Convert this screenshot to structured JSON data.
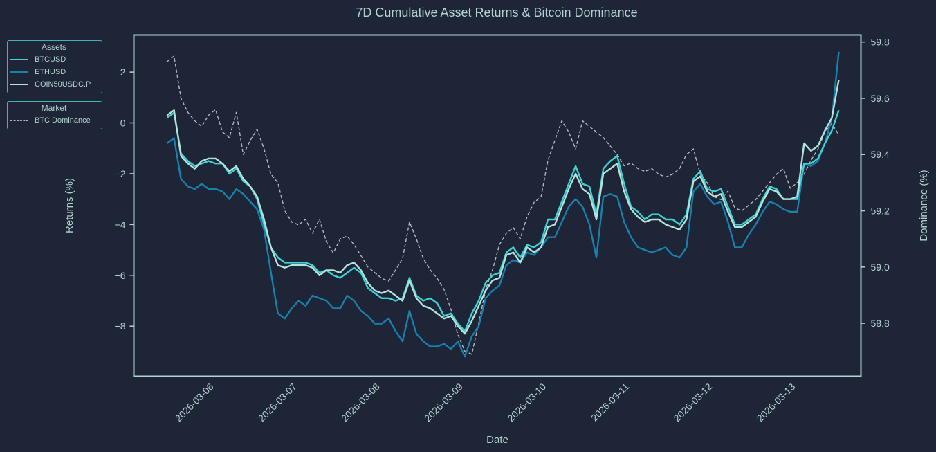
{
  "chart_data": {
    "type": "line",
    "title": "7D Cumulative Asset Returns & Bitcoin Dominance",
    "xlabel": "Date",
    "ylabel": "Returns (%)",
    "y2label": "Dominance (%)",
    "x_start": "2026-03-05T11:36",
    "x_step_hours": 2,
    "xlim": [
      "2026-03-05T02:00",
      "2026-03-13T20:00"
    ],
    "x_ticks": [
      "2026-03-06",
      "2026-03-07",
      "2026-03-08",
      "2026-03-09",
      "2026-03-10",
      "2026-03-11",
      "2026-03-12",
      "2026-03-13"
    ],
    "ylim": [
      -9.97,
      3.46
    ],
    "y_ticks": [
      2,
      0,
      -2,
      -4,
      -6,
      -8
    ],
    "y_tick_labels": [
      "2",
      "0",
      "−2",
      "−4",
      "−6",
      "−8"
    ],
    "y2lim": [
      58.612,
      59.825
    ],
    "y2_ticks": [
      59.8,
      59.6,
      59.4,
      59.2,
      59.0,
      58.8
    ],
    "y2_tick_labels": [
      "59.8",
      "59.6",
      "59.4",
      "59.2",
      "59.0",
      "58.8"
    ],
    "grid": false,
    "legends": [
      {
        "title": "Assets",
        "placement": "top-left (outside)",
        "entries": [
          "BTCUSD",
          "ETHUSD",
          "COIN50USDC.P"
        ]
      },
      {
        "title": "Market",
        "placement": "top-left (outside)",
        "entries": [
          "BTC Dominance"
        ]
      }
    ],
    "series": [
      {
        "name": "BTCUSD",
        "axis": "left",
        "color": "#3fd3d6",
        "style": "solid",
        "values": [
          0.2,
          0.4,
          -1.2,
          -1.5,
          -1.7,
          -1.6,
          -1.5,
          -1.6,
          -1.6,
          -2.0,
          -1.8,
          -2.3,
          -2.5,
          -3.0,
          -4.0,
          -4.9,
          -5.3,
          -5.5,
          -5.5,
          -5.5,
          -5.5,
          -5.6,
          -5.9,
          -5.8,
          -6.0,
          -6.1,
          -5.9,
          -5.7,
          -5.9,
          -6.5,
          -6.7,
          -6.9,
          -6.9,
          -7.0,
          -6.9,
          -6.1,
          -6.8,
          -7.0,
          -6.9,
          -7.1,
          -7.6,
          -7.5,
          -7.9,
          -8.2,
          -7.5,
          -7.0,
          -6.3,
          -6.0,
          -5.9,
          -5.1,
          -4.9,
          -5.3,
          -4.8,
          -4.9,
          -4.7,
          -3.8,
          -3.8,
          -3.1,
          -2.4,
          -1.7,
          -2.4,
          -2.5,
          -3.6,
          -1.8,
          -1.5,
          -1.3,
          -2.4,
          -3.3,
          -3.5,
          -3.8,
          -3.6,
          -3.6,
          -3.8,
          -3.8,
          -4.0,
          -3.6,
          -2.2,
          -1.9,
          -2.6,
          -2.7,
          -2.6,
          -3.3,
          -4.0,
          -4.0,
          -3.8,
          -3.6,
          -3.0,
          -2.5,
          -2.6,
          -3.0,
          -3.0,
          -3.0,
          -1.6,
          -1.6,
          -1.4,
          -0.8,
          -0.3,
          0.5
        ]
      },
      {
        "name": "ETHUSD",
        "axis": "left",
        "color": "#1a80ae",
        "style": "solid",
        "values": [
          -0.8,
          -0.6,
          -2.2,
          -2.5,
          -2.6,
          -2.4,
          -2.6,
          -2.6,
          -2.7,
          -3.0,
          -2.6,
          -2.8,
          -3.1,
          -3.4,
          -4.2,
          -5.9,
          -7.5,
          -7.7,
          -7.3,
          -7.0,
          -7.2,
          -6.8,
          -6.9,
          -7.0,
          -7.3,
          -7.3,
          -6.8,
          -7.0,
          -7.4,
          -7.6,
          -7.9,
          -7.9,
          -7.7,
          -8.2,
          -8.6,
          -7.4,
          -8.3,
          -8.6,
          -8.8,
          -8.8,
          -8.7,
          -8.9,
          -8.6,
          -9.2,
          -8.4,
          -8.0,
          -6.9,
          -6.6,
          -6.4,
          -5.6,
          -5.4,
          -5.5,
          -5.1,
          -5.2,
          -4.9,
          -4.5,
          -4.5,
          -3.9,
          -3.3,
          -3.0,
          -3.3,
          -4.0,
          -5.3,
          -2.9,
          -2.8,
          -2.9,
          -3.9,
          -4.5,
          -4.9,
          -5.0,
          -5.1,
          -5.0,
          -4.9,
          -5.2,
          -5.3,
          -4.9,
          -2.7,
          -2.4,
          -2.9,
          -3.2,
          -3.1,
          -3.9,
          -4.9,
          -4.9,
          -4.4,
          -4.0,
          -3.5,
          -3.1,
          -3.2,
          -3.4,
          -3.5,
          -3.5,
          -1.6,
          -1.7,
          -1.5,
          -0.8,
          0.2,
          2.8
        ]
      },
      {
        "name": "COIN50USDC.P",
        "axis": "left",
        "color": "#b5e2db",
        "style": "solid",
        "values": [
          0.3,
          0.5,
          -1.3,
          -1.6,
          -1.8,
          -1.5,
          -1.4,
          -1.4,
          -1.6,
          -1.9,
          -1.7,
          -2.2,
          -2.5,
          -2.9,
          -3.8,
          -4.9,
          -5.6,
          -5.7,
          -5.6,
          -5.6,
          -5.6,
          -5.7,
          -6.0,
          -5.8,
          -5.8,
          -5.9,
          -5.6,
          -5.5,
          -5.8,
          -6.3,
          -6.6,
          -6.7,
          -6.6,
          -6.8,
          -7.0,
          -6.2,
          -6.9,
          -7.2,
          -7.3,
          -7.5,
          -7.7,
          -7.6,
          -8.0,
          -8.3,
          -7.8,
          -7.2,
          -6.6,
          -6.2,
          -6.1,
          -5.2,
          -5.1,
          -5.5,
          -4.9,
          -5.1,
          -4.9,
          -4.1,
          -4.0,
          -3.3,
          -2.6,
          -2.0,
          -2.6,
          -2.8,
          -3.8,
          -2.0,
          -1.8,
          -1.6,
          -2.7,
          -3.4,
          -3.7,
          -3.9,
          -3.8,
          -3.8,
          -4.0,
          -4.1,
          -4.2,
          -3.8,
          -2.3,
          -2.1,
          -2.7,
          -2.9,
          -2.8,
          -3.5,
          -4.1,
          -4.1,
          -3.9,
          -3.7,
          -3.1,
          -2.6,
          -2.7,
          -3.0,
          -3.0,
          -2.9,
          -0.8,
          -1.1,
          -0.9,
          -0.3,
          0.2,
          1.7
        ]
      },
      {
        "name": "BTC Dominance",
        "axis": "right",
        "color": "#b6b6bf",
        "style": "dashed",
        "values": [
          59.73,
          59.75,
          59.6,
          59.55,
          59.52,
          59.5,
          59.54,
          59.56,
          59.48,
          59.46,
          59.55,
          59.4,
          59.45,
          59.49,
          59.42,
          59.33,
          59.3,
          59.2,
          59.16,
          59.15,
          59.17,
          59.12,
          59.17,
          59.09,
          59.05,
          59.1,
          59.11,
          59.08,
          59.04,
          59.0,
          58.98,
          58.96,
          58.95,
          58.99,
          59.03,
          59.16,
          59.1,
          59.03,
          58.99,
          58.96,
          58.92,
          58.85,
          58.76,
          58.7,
          58.69,
          58.8,
          58.92,
          58.99,
          59.08,
          59.12,
          59.14,
          59.1,
          59.18,
          59.23,
          59.25,
          59.38,
          59.45,
          59.52,
          59.48,
          59.42,
          59.52,
          59.5,
          59.48,
          59.46,
          59.43,
          59.4,
          59.36,
          59.37,
          59.35,
          59.34,
          59.35,
          59.33,
          59.32,
          59.33,
          59.35,
          59.4,
          59.42,
          59.33,
          59.3,
          59.25,
          59.24,
          59.27,
          59.21,
          59.2,
          59.22,
          59.24,
          59.27,
          59.3,
          59.33,
          59.35,
          59.28,
          59.3,
          59.33,
          59.38,
          59.42,
          59.48,
          59.51,
          59.47
        ]
      }
    ]
  }
}
